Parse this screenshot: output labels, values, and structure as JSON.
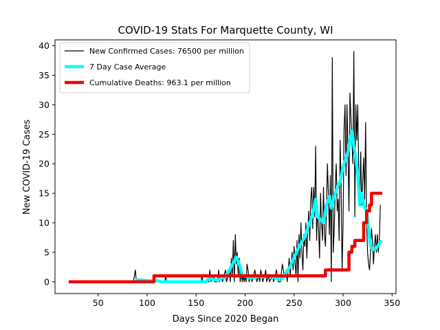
{
  "chart_data": {
    "type": "line",
    "title": "COVID-19 Stats For Marquette County, WI",
    "xlabel": "Days Since 2020 Began",
    "ylabel": "New COVID-19 Cases",
    "xlim": [
      6,
      354
    ],
    "ylim": [
      -2,
      41
    ],
    "xticks": [
      50,
      100,
      150,
      200,
      250,
      300,
      350
    ],
    "yticks": [
      0,
      5,
      10,
      15,
      20,
      25,
      30,
      35,
      40
    ],
    "grid": false,
    "legend": "top-left",
    "series": [
      {
        "name": "New Confirmed Cases: 76500 per million",
        "color": "#000000",
        "width": 1.2,
        "points": [
          [
            20,
            0
          ],
          [
            86,
            0
          ],
          [
            88,
            2
          ],
          [
            89,
            0
          ],
          [
            106,
            0
          ],
          [
            107,
            1
          ],
          [
            108,
            0
          ],
          [
            118,
            0
          ],
          [
            119,
            1
          ],
          [
            120,
            0
          ],
          [
            155,
            0
          ],
          [
            156,
            1
          ],
          [
            157,
            0
          ],
          [
            163,
            0
          ],
          [
            164,
            2
          ],
          [
            165,
            0
          ],
          [
            168,
            1
          ],
          [
            169,
            0
          ],
          [
            172,
            0
          ],
          [
            173,
            2
          ],
          [
            174,
            0
          ],
          [
            176,
            1
          ],
          [
            177,
            0
          ],
          [
            180,
            2
          ],
          [
            181,
            0
          ],
          [
            183,
            1
          ],
          [
            184,
            2
          ],
          [
            185,
            0
          ],
          [
            186,
            4
          ],
          [
            187,
            1
          ],
          [
            188,
            7
          ],
          [
            189,
            0
          ],
          [
            190,
            8
          ],
          [
            191,
            3
          ],
          [
            192,
            5
          ],
          [
            193,
            1
          ],
          [
            194,
            4
          ],
          [
            195,
            0
          ],
          [
            196,
            2
          ],
          [
            197,
            0
          ],
          [
            198,
            1
          ],
          [
            199,
            0
          ],
          [
            200,
            1
          ],
          [
            201,
            0
          ],
          [
            202,
            3
          ],
          [
            203,
            2
          ],
          [
            204,
            0
          ],
          [
            206,
            1
          ],
          [
            207,
            0
          ],
          [
            210,
            2
          ],
          [
            211,
            1
          ],
          [
            212,
            0
          ],
          [
            214,
            1
          ],
          [
            215,
            0
          ],
          [
            216,
            2
          ],
          [
            217,
            1
          ],
          [
            218,
            0
          ],
          [
            220,
            1
          ],
          [
            221,
            2
          ],
          [
            222,
            0
          ],
          [
            224,
            1
          ],
          [
            225,
            0
          ],
          [
            228,
            1
          ],
          [
            229,
            0
          ],
          [
            232,
            2
          ],
          [
            233,
            1
          ],
          [
            234,
            0
          ],
          [
            236,
            0
          ],
          [
            238,
            3
          ],
          [
            240,
            1
          ],
          [
            242,
            2
          ],
          [
            243,
            0
          ],
          [
            245,
            4
          ],
          [
            246,
            1
          ],
          [
            247,
            3
          ],
          [
            248,
            5
          ],
          [
            249,
            2
          ],
          [
            250,
            6
          ],
          [
            251,
            3
          ],
          [
            252,
            1
          ],
          [
            253,
            7
          ],
          [
            254,
            0
          ],
          [
            255,
            8
          ],
          [
            256,
            4
          ],
          [
            257,
            10
          ],
          [
            258,
            5
          ],
          [
            259,
            2
          ],
          [
            260,
            8
          ],
          [
            261,
            6
          ],
          [
            262,
            10
          ],
          [
            263,
            4
          ],
          [
            264,
            9
          ],
          [
            265,
            12
          ],
          [
            266,
            7
          ],
          [
            267,
            14
          ],
          [
            268,
            16
          ],
          [
            269,
            9
          ],
          [
            270,
            16
          ],
          [
            271,
            11
          ],
          [
            272,
            23
          ],
          [
            273,
            7
          ],
          [
            274,
            13
          ],
          [
            275,
            9
          ],
          [
            276,
            4
          ],
          [
            277,
            15
          ],
          [
            278,
            10
          ],
          [
            279,
            7
          ],
          [
            280,
            16
          ],
          [
            281,
            8
          ],
          [
            282,
            6
          ],
          [
            283,
            12
          ],
          [
            284,
            20
          ],
          [
            285,
            15
          ],
          [
            286,
            8
          ],
          [
            287,
            18
          ],
          [
            288,
            0
          ],
          [
            289,
            38
          ],
          [
            290,
            5
          ],
          [
            291,
            9
          ],
          [
            292,
            16
          ],
          [
            293,
            20
          ],
          [
            294,
            12
          ],
          [
            295,
            14
          ],
          [
            296,
            7
          ],
          [
            297,
            24
          ],
          [
            298,
            16
          ],
          [
            299,
            2
          ],
          [
            300,
            10
          ],
          [
            301,
            26
          ],
          [
            302,
            30
          ],
          [
            303,
            18
          ],
          [
            304,
            30
          ],
          [
            305,
            22
          ],
          [
            306,
            12
          ],
          [
            307,
            32
          ],
          [
            308,
            28
          ],
          [
            309,
            24
          ],
          [
            310,
            20
          ],
          [
            311,
            39
          ],
          [
            312,
            11
          ],
          [
            313,
            30
          ],
          [
            314,
            24
          ],
          [
            315,
            30
          ],
          [
            316,
            18
          ],
          [
            317,
            13
          ],
          [
            318,
            22
          ],
          [
            319,
            13
          ],
          [
            320,
            17
          ],
          [
            321,
            21
          ],
          [
            322,
            14
          ],
          [
            323,
            27
          ],
          [
            324,
            10
          ],
          [
            325,
            5
          ],
          [
            326,
            3
          ],
          [
            327,
            2
          ],
          [
            328,
            5
          ],
          [
            329,
            9
          ],
          [
            330,
            7
          ],
          [
            331,
            3
          ],
          [
            332,
            6
          ],
          [
            333,
            8
          ],
          [
            334,
            5
          ],
          [
            335,
            8
          ],
          [
            336,
            5
          ],
          [
            337,
            7
          ],
          [
            338,
            13
          ]
        ]
      },
      {
        "name": "7 Day Case Average",
        "color": "#00ffff",
        "width": 4.5,
        "points": [
          [
            88,
            0.3
          ],
          [
            94,
            0.3
          ],
          [
            106,
            0.1
          ],
          [
            110,
            0.2
          ],
          [
            114,
            0
          ],
          [
            160,
            0
          ],
          [
            163,
            0.5
          ],
          [
            168,
            0.4
          ],
          [
            172,
            0.2
          ],
          [
            176,
            0.6
          ],
          [
            180,
            0.9
          ],
          [
            184,
            2
          ],
          [
            188,
            3.2
          ],
          [
            191,
            4.2
          ],
          [
            194,
            3
          ],
          [
            197,
            1.3
          ],
          [
            201,
            0.9
          ],
          [
            205,
            0.6
          ],
          [
            210,
            0.8
          ],
          [
            215,
            0.9
          ],
          [
            219,
            0.9
          ],
          [
            224,
            1.1
          ],
          [
            228,
            0.8
          ],
          [
            233,
            0.5
          ],
          [
            237,
            0.4
          ],
          [
            240,
            1
          ],
          [
            243,
            1.8
          ],
          [
            246,
            2.6
          ],
          [
            249,
            3.8
          ],
          [
            253,
            5.2
          ],
          [
            257,
            6.5
          ],
          [
            261,
            7.6
          ],
          [
            265,
            9.6
          ],
          [
            269,
            11.5
          ],
          [
            272,
            14
          ],
          [
            274,
            11
          ],
          [
            277,
            10.5
          ],
          [
            280,
            10
          ],
          [
            283,
            13
          ],
          [
            286,
            14.5
          ],
          [
            288,
            12.5
          ],
          [
            291,
            14.5
          ],
          [
            294,
            16
          ],
          [
            297,
            17
          ],
          [
            300,
            19.5
          ],
          [
            303,
            21
          ],
          [
            305,
            22
          ],
          [
            307,
            24
          ],
          [
            309,
            25.5
          ],
          [
            311,
            23
          ],
          [
            313,
            21
          ],
          [
            315,
            18
          ],
          [
            317,
            13
          ],
          [
            319,
            15
          ],
          [
            321,
            13
          ],
          [
            324,
            12
          ],
          [
            326,
            9
          ],
          [
            328,
            6
          ],
          [
            331,
            5.5
          ],
          [
            334,
            5.7
          ],
          [
            337,
            6.5
          ],
          [
            339,
            7
          ]
        ]
      },
      {
        "name": "Cumulative Deaths: 963.1 per million",
        "color": "#ee0000",
        "width": 4.5,
        "steps": [
          [
            20,
            0
          ],
          [
            107,
            0
          ],
          [
            107,
            1
          ],
          [
            282,
            1
          ],
          [
            282,
            2
          ],
          [
            306,
            2
          ],
          [
            306,
            5
          ],
          [
            309,
            5
          ],
          [
            309,
            6
          ],
          [
            312,
            6
          ],
          [
            312,
            7
          ],
          [
            321,
            7
          ],
          [
            321,
            10
          ],
          [
            324,
            10
          ],
          [
            324,
            12
          ],
          [
            327,
            12
          ],
          [
            327,
            13
          ],
          [
            329,
            13
          ],
          [
            329,
            15
          ],
          [
            340,
            15
          ]
        ]
      }
    ]
  }
}
